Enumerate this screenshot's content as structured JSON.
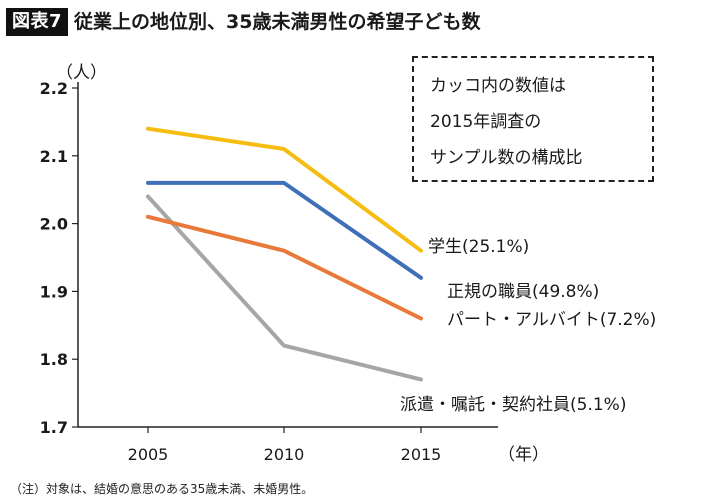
{
  "header": {
    "badge": "図表7",
    "title": "従業上の地位別、35歳未満男性の希望子ども数"
  },
  "note_box": {
    "lines": [
      "カッコ内の数値は",
      "2015年調査の",
      "サンプル数の構成比"
    ]
  },
  "footnote": "（注）対象は、結婚の意思のある35歳未満、未婚男性。",
  "colors": {
    "学生": "#f5bd11",
    "正規の職員": "#3e6fb8",
    "パート・アルバイト": "#e9793a",
    "派遣・嘱託・契約社員": "#a6a6a6"
  },
  "chart_data": {
    "type": "line",
    "title": "従業上の地位別、35歳未満男性の希望子ども数",
    "xlabel": "（年）",
    "ylabel": "（人）",
    "x": [
      "2005",
      "2010",
      "2015"
    ],
    "ylim": [
      1.7,
      2.2
    ],
    "yticks": [
      "1.7",
      "1.8",
      "1.9",
      "2.0",
      "2.1",
      "2.2"
    ],
    "grid": false,
    "series": [
      {
        "name": "学生",
        "label": "学生(25.1%)",
        "values": [
          2.14,
          2.11,
          1.96
        ],
        "color": "#f5bd11"
      },
      {
        "name": "正規の職員",
        "label": "正規の職員(49.8%)",
        "values": [
          2.06,
          2.06,
          1.92
        ],
        "color": "#3e6fb8"
      },
      {
        "name": "パート・アルバイト",
        "label": "パート・アルバイト(7.2%)",
        "values": [
          2.01,
          1.96,
          1.86
        ],
        "color": "#e9793a"
      },
      {
        "name": "派遣・嘱託・契約社員",
        "label": "派遣・嘱託・契約社員(5.1%)",
        "values": [
          2.04,
          1.82,
          1.77
        ],
        "color": "#a6a6a6"
      }
    ]
  }
}
